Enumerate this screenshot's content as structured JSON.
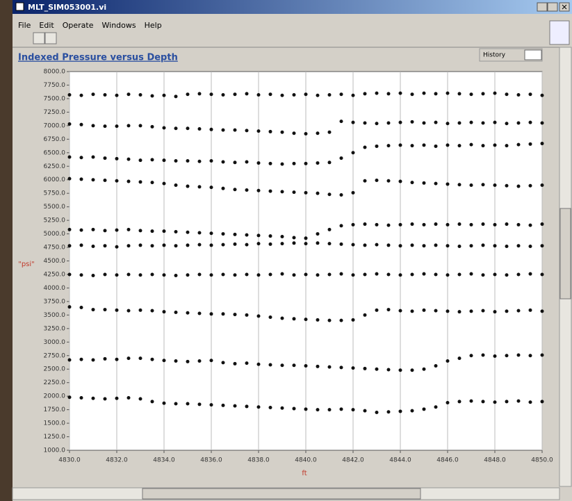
{
  "window": {
    "title": "MLT_SIM053001.vi",
    "menu": [
      "File",
      "Edit",
      "Operate",
      "Windows",
      "Help"
    ]
  },
  "chart_data": {
    "type": "scatter",
    "title": "Indexed Pressure versus Depth",
    "legend": "History",
    "x_label": "ft",
    "y_label": "\"psi\"",
    "color": "#111111",
    "grid": "x",
    "xlim": [
      4830,
      4850
    ],
    "ylim": [
      1000,
      8000
    ],
    "xticks": [
      {
        "value": 4830,
        "label": "4830.0"
      },
      {
        "value": 4832,
        "label": "4832.0"
      },
      {
        "value": 4834,
        "label": "4834.0"
      },
      {
        "value": 4836,
        "label": "4836.0"
      },
      {
        "value": 4838,
        "label": "4838.0"
      },
      {
        "value": 4840,
        "label": "4840.0"
      },
      {
        "value": 4842,
        "label": "4842.0"
      },
      {
        "value": 4844,
        "label": "4844.0"
      },
      {
        "value": 4846,
        "label": "4846.0"
      },
      {
        "value": 4848,
        "label": "4848.0"
      },
      {
        "value": 4850,
        "label": "4850.0"
      }
    ],
    "yticks": [
      {
        "value": 1000,
        "label": "1000.0"
      },
      {
        "value": 1250,
        "label": "1250.0"
      },
      {
        "value": 1500,
        "label": "1500.0"
      },
      {
        "value": 1750,
        "label": "1750.0"
      },
      {
        "value": 2000,
        "label": "2000.0"
      },
      {
        "value": 2250,
        "label": "2250.0"
      },
      {
        "value": 2500,
        "label": "2500.0"
      },
      {
        "value": 2750,
        "label": "2750.0"
      },
      {
        "value": 3000,
        "label": "3000.0"
      },
      {
        "value": 3250,
        "label": "3250.0"
      },
      {
        "value": 3500,
        "label": "3500.0"
      },
      {
        "value": 3750,
        "label": "3750.0"
      },
      {
        "value": 4000,
        "label": "4000.0"
      },
      {
        "value": 4250,
        "label": "4250.0"
      },
      {
        "value": 4500,
        "label": "4500.0"
      },
      {
        "value": 4750,
        "label": "4750.0"
      },
      {
        "value": 5000,
        "label": "5000.0"
      },
      {
        "value": 5250,
        "label": "5250.0"
      },
      {
        "value": 5500,
        "label": "5500.0"
      },
      {
        "value": 5750,
        "label": "5750.0"
      },
      {
        "value": 6000,
        "label": "6000.0"
      },
      {
        "value": 6250,
        "label": "6250.0"
      },
      {
        "value": 6500,
        "label": "6500.0"
      },
      {
        "value": 6750,
        "label": "6750.0"
      },
      {
        "value": 7000,
        "label": "7000.0"
      },
      {
        "value": 7250,
        "label": "7250.0"
      },
      {
        "value": 7500,
        "label": "7500.0"
      },
      {
        "value": 7750,
        "label": "7750.0"
      },
      {
        "value": 8000,
        "label": "8000.0"
      }
    ],
    "x": [
      4830,
      4830.5,
      4831,
      4831.5,
      4832,
      4832.5,
      4833,
      4833.5,
      4834,
      4834.5,
      4835,
      4835.5,
      4836,
      4836.5,
      4837,
      4837.5,
      4838,
      4838.5,
      4839,
      4839.5,
      4840,
      4840.5,
      4841,
      4841.5,
      4842,
      4842.5,
      4843,
      4843.5,
      4844,
      4844.5,
      4845,
      4845.5,
      4846,
      4846.5,
      4847,
      4847.5,
      4848,
      4848.5,
      4849,
      4849.5,
      4850
    ],
    "series": [
      {
        "values": [
          7570,
          7560,
          7580,
          7570,
          7560,
          7580,
          7570,
          7550,
          7560,
          7540,
          7580,
          7590,
          7580,
          7570,
          7580,
          7590,
          7570,
          7580,
          7560,
          7570,
          7580,
          7560,
          7570,
          7580,
          7560,
          7590,
          7600,
          7590,
          7600,
          7580,
          7600,
          7590,
          7600,
          7590,
          7580,
          7590,
          7600,
          7580,
          7570,
          7580,
          7560
        ]
      },
      {
        "values": [
          7030,
          7020,
          7000,
          6990,
          6990,
          7000,
          7000,
          6980,
          6960,
          6950,
          6950,
          6940,
          6930,
          6920,
          6920,
          6910,
          6900,
          6890,
          6880,
          6860,
          6850,
          6860,
          6880,
          7080,
          7060,
          7050,
          7040,
          7050,
          7060,
          7070,
          7050,
          7060,
          7040,
          7050,
          7060,
          7050,
          7060,
          7040,
          7050,
          7060,
          7050
        ]
      },
      {
        "values": [
          6420,
          6410,
          6420,
          6400,
          6390,
          6380,
          6360,
          6370,
          6360,
          6350,
          6350,
          6340,
          6350,
          6330,
          6320,
          6330,
          6310,
          6300,
          6290,
          6300,
          6300,
          6310,
          6320,
          6400,
          6500,
          6600,
          6620,
          6630,
          6640,
          6630,
          6640,
          6620,
          6640,
          6630,
          6650,
          6630,
          6640,
          6630,
          6650,
          6660,
          6670
        ]
      },
      {
        "values": [
          6020,
          6010,
          6000,
          5990,
          5980,
          5970,
          5960,
          5950,
          5930,
          5900,
          5880,
          5870,
          5860,
          5840,
          5820,
          5810,
          5800,
          5790,
          5780,
          5770,
          5760,
          5750,
          5730,
          5720,
          5760,
          5980,
          5990,
          5980,
          5970,
          5950,
          5940,
          5930,
          5920,
          5910,
          5900,
          5910,
          5900,
          5890,
          5880,
          5890,
          5900
        ]
      },
      {
        "values": [
          5080,
          5070,
          5080,
          5060,
          5070,
          5080,
          5060,
          5050,
          5050,
          5040,
          5030,
          5020,
          5010,
          5000,
          4990,
          4980,
          4970,
          4960,
          4950,
          4930,
          4920,
          5000,
          5080,
          5150,
          5170,
          5180,
          5170,
          5160,
          5170,
          5180,
          5170,
          5180,
          5170,
          5180,
          5170,
          5180,
          5170,
          5180,
          5170,
          5160,
          5180
        ]
      },
      {
        "values": [
          4780,
          4790,
          4770,
          4780,
          4760,
          4780,
          4790,
          4780,
          4790,
          4780,
          4790,
          4800,
          4790,
          4800,
          4810,
          4800,
          4820,
          4810,
          4820,
          4830,
          4820,
          4830,
          4820,
          4810,
          4800,
          4790,
          4800,
          4790,
          4780,
          4790,
          4780,
          4790,
          4780,
          4770,
          4780,
          4790,
          4780,
          4770,
          4780,
          4770,
          4780
        ]
      },
      {
        "values": [
          4250,
          4240,
          4230,
          4250,
          4240,
          4250,
          4240,
          4250,
          4240,
          4230,
          4240,
          4250,
          4240,
          4250,
          4240,
          4250,
          4240,
          4250,
          4260,
          4240,
          4250,
          4240,
          4250,
          4260,
          4240,
          4250,
          4260,
          4250,
          4240,
          4250,
          4260,
          4250,
          4240,
          4250,
          4260,
          4240,
          4250,
          4240,
          4250,
          4260,
          4250
        ]
      },
      {
        "values": [
          3650,
          3640,
          3600,
          3600,
          3590,
          3580,
          3590,
          3580,
          3560,
          3550,
          3540,
          3530,
          3520,
          3520,
          3510,
          3500,
          3480,
          3460,
          3440,
          3430,
          3420,
          3410,
          3400,
          3400,
          3410,
          3500,
          3590,
          3600,
          3580,
          3570,
          3590,
          3580,
          3570,
          3560,
          3570,
          3580,
          3560,
          3570,
          3580,
          3590,
          3570
        ]
      },
      {
        "values": [
          2670,
          2680,
          2670,
          2690,
          2680,
          2700,
          2700,
          2680,
          2660,
          2650,
          2640,
          2650,
          2660,
          2620,
          2600,
          2610,
          2590,
          2580,
          2570,
          2570,
          2560,
          2550,
          2540,
          2530,
          2520,
          2510,
          2500,
          2490,
          2480,
          2480,
          2500,
          2560,
          2650,
          2700,
          2750,
          2760,
          2740,
          2750,
          2760,
          2750,
          2760
        ]
      },
      {
        "values": [
          1980,
          1970,
          1960,
          1950,
          1960,
          1970,
          1950,
          1900,
          1870,
          1860,
          1860,
          1850,
          1840,
          1830,
          1820,
          1810,
          1800,
          1790,
          1780,
          1770,
          1760,
          1750,
          1750,
          1760,
          1750,
          1730,
          1700,
          1710,
          1720,
          1730,
          1760,
          1800,
          1880,
          1900,
          1910,
          1900,
          1890,
          1900,
          1910,
          1890,
          1900
        ]
      }
    ]
  }
}
